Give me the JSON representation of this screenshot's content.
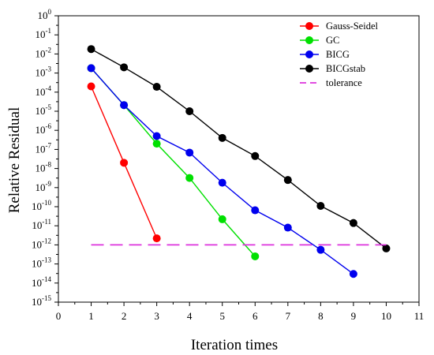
{
  "chart_data": {
    "type": "line",
    "xlabel": "Iteration times",
    "ylabel": "Relative Residual",
    "xlim": [
      0,
      11
    ],
    "xticks": [
      0,
      1,
      2,
      3,
      4,
      5,
      6,
      7,
      8,
      9,
      10,
      11
    ],
    "yscale": "log",
    "ylim_exponents": [
      -15,
      0
    ],
    "ytick_exponents": [
      0,
      -1,
      -2,
      -3,
      -4,
      -5,
      -6,
      -7,
      -8,
      -9,
      -10,
      -11,
      -12,
      -13,
      -14,
      -15
    ],
    "legend_position": "top-right",
    "series": [
      {
        "name": "Gauss-Seidel",
        "color": "#ff0000",
        "marker": "circle",
        "x": [
          1,
          2,
          3
        ],
        "y": [
          0.0002,
          2e-08,
          2.2e-12
        ]
      },
      {
        "name": "GC",
        "color": "#00e000",
        "marker": "circle",
        "x": [
          1,
          2,
          3,
          4,
          5,
          6
        ],
        "y": [
          0.0018,
          2.1e-05,
          2e-07,
          3.2e-09,
          2.2e-11,
          2.5e-13
        ]
      },
      {
        "name": "BICG",
        "color": "#0000ee",
        "marker": "circle",
        "x": [
          1,
          2,
          3,
          4,
          5,
          6,
          7,
          8,
          9
        ],
        "y": [
          0.0018,
          2.1e-05,
          5e-07,
          6.8e-08,
          1.8e-09,
          6.5e-11,
          8e-12,
          5.5e-13,
          3e-14
        ]
      },
      {
        "name": "BICGstab",
        "color": "#000000",
        "marker": "circle",
        "x": [
          1,
          2,
          3,
          4,
          5,
          6,
          7,
          8,
          9,
          10
        ],
        "y": [
          0.018,
          0.002,
          0.00019,
          1e-05,
          4e-07,
          4.5e-08,
          2.5e-09,
          1.1e-10,
          1.4e-11,
          6.5e-13
        ]
      },
      {
        "name": "tolerance",
        "color": "#dd33dd",
        "marker": "none",
        "dashed": true,
        "x": [
          1,
          10
        ],
        "y": [
          1e-12,
          1e-12
        ]
      }
    ]
  }
}
